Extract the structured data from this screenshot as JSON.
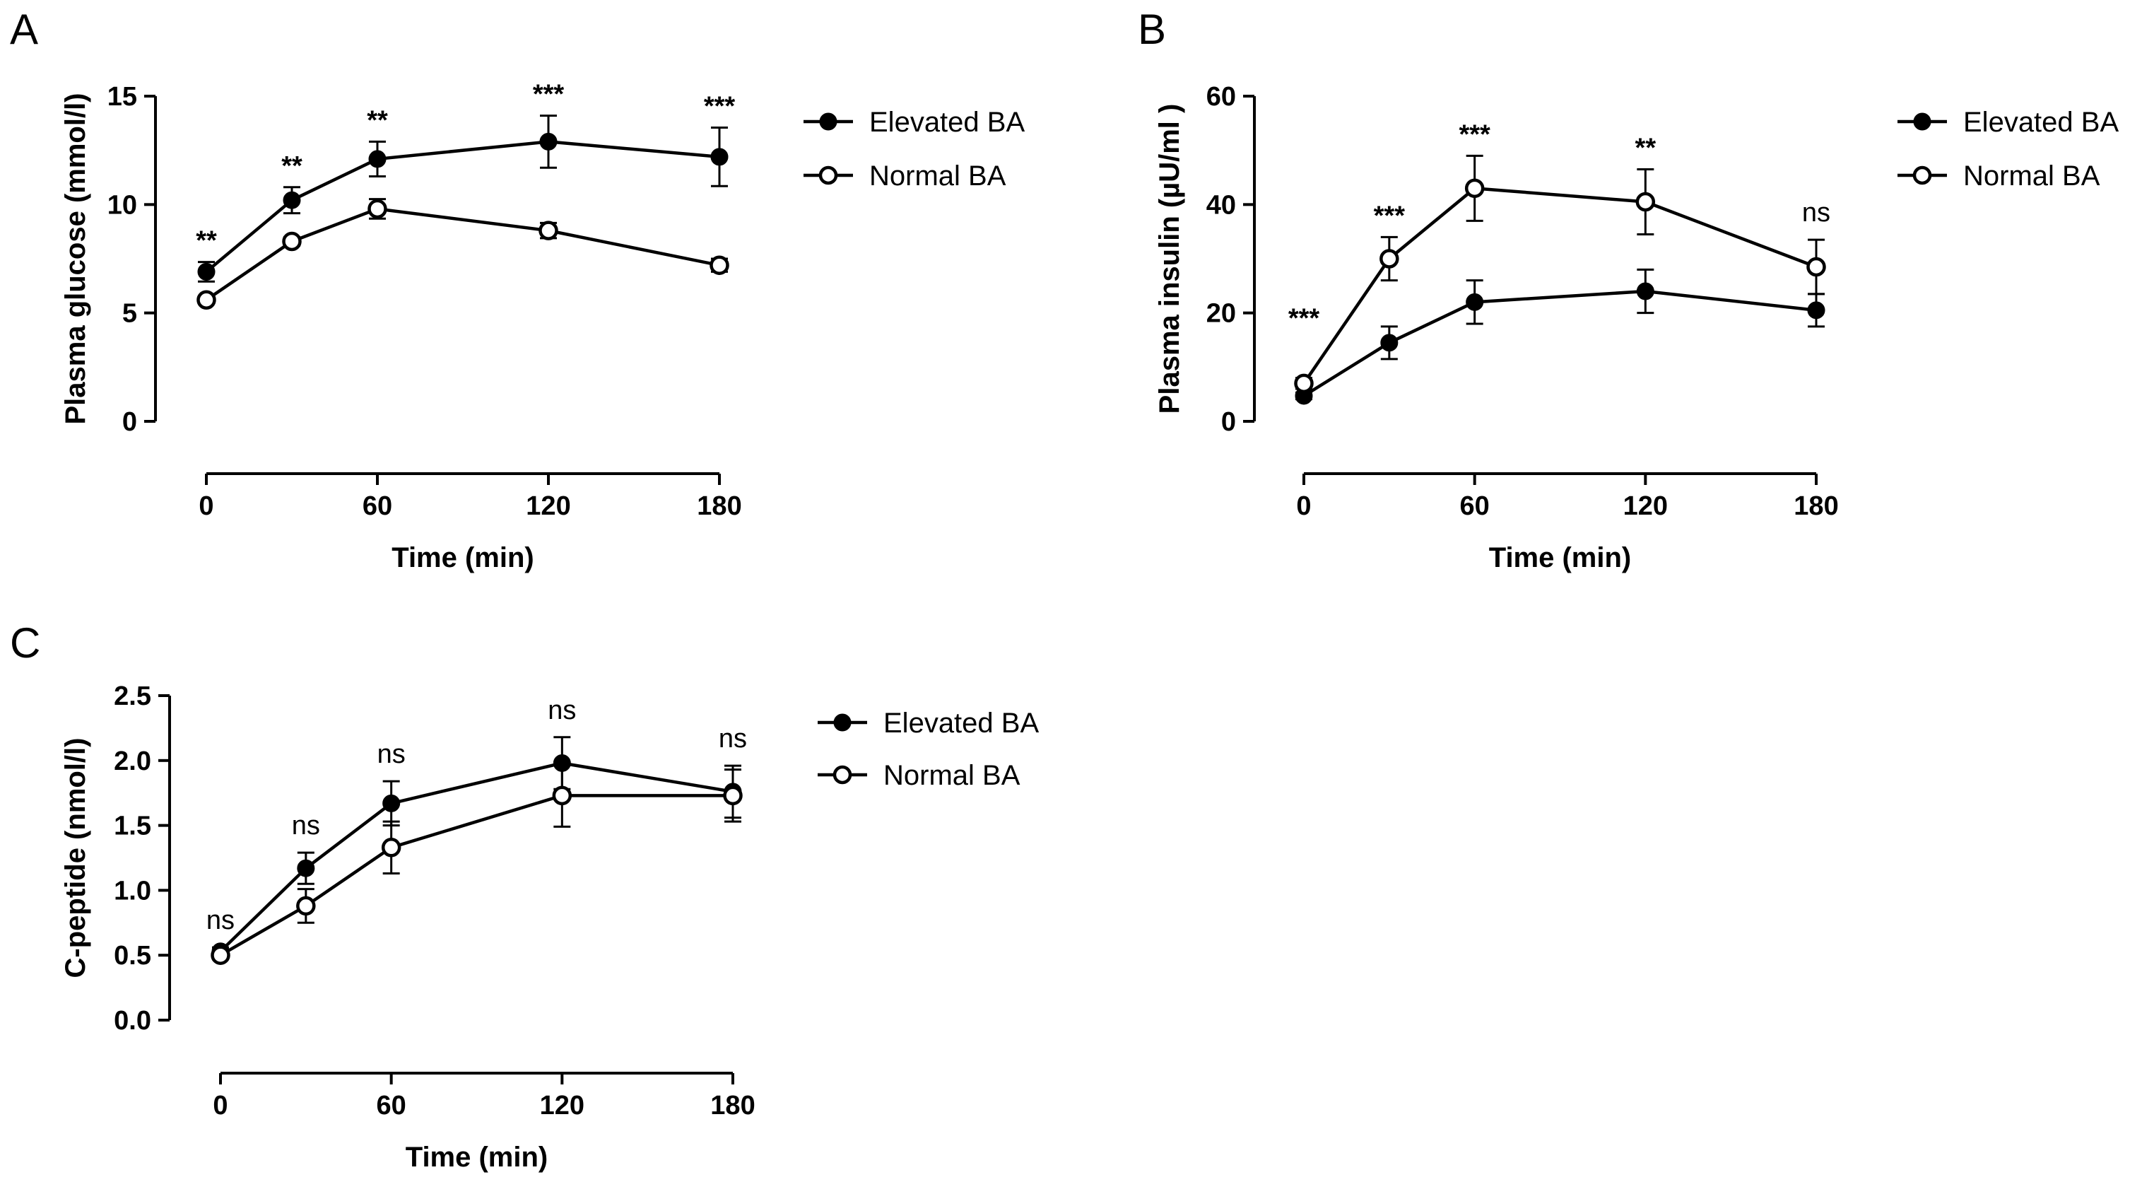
{
  "chart_data": [
    {
      "panel": "A",
      "type": "line",
      "xlabel": "Time (min)",
      "ylabel": "Plasma glucose (mmol/l)",
      "xlim": [
        0,
        180
      ],
      "ylim": [
        0,
        15
      ],
      "xticks": [
        "0",
        "60",
        "120",
        "180"
      ],
      "yticks": [
        "0",
        "5",
        "10",
        "15"
      ],
      "x": [
        0,
        30,
        60,
        120,
        180
      ],
      "series": [
        {
          "name": "Elevated BA",
          "marker": "filled",
          "values": [
            6.9,
            10.2,
            12.1,
            12.9,
            12.2
          ],
          "errors": [
            0.45,
            0.6,
            0.8,
            1.2,
            1.35
          ]
        },
        {
          "name": "Normal BA",
          "marker": "open",
          "values": [
            5.6,
            8.3,
            9.8,
            8.8,
            7.2
          ],
          "errors": [
            0.15,
            0.2,
            0.45,
            0.35,
            0.3
          ]
        }
      ],
      "annotations": [
        {
          "x": 0,
          "label": "**"
        },
        {
          "x": 30,
          "label": "**"
        },
        {
          "x": 60,
          "label": "**"
        },
        {
          "x": 120,
          "label": "***"
        },
        {
          "x": 180,
          "label": "***"
        }
      ],
      "legend": "top-right"
    },
    {
      "panel": "B",
      "type": "line",
      "xlabel": "Time (min)",
      "ylabel": "Plasma insulin (µU/ml )",
      "xlim": [
        0,
        180
      ],
      "ylim": [
        0,
        60
      ],
      "xticks": [
        "0",
        "60",
        "120",
        "180"
      ],
      "yticks": [
        "0",
        "20",
        "40",
        "60"
      ],
      "x": [
        0,
        30,
        60,
        120,
        180
      ],
      "series": [
        {
          "name": "Elevated BA",
          "marker": "filled",
          "values": [
            4.7,
            14.5,
            22.0,
            24.0,
            20.5
          ],
          "errors": [
            0.6,
            3.0,
            4.0,
            4.0,
            3.0
          ]
        },
        {
          "name": "Normal BA",
          "marker": "open",
          "values": [
            7.0,
            30.0,
            43.0,
            40.5,
            28.5
          ],
          "errors": [
            1.0,
            4.0,
            6.0,
            6.0,
            5.0
          ]
        }
      ],
      "annotations": [
        {
          "x": 0,
          "label": "***"
        },
        {
          "x": 30,
          "label": "***"
        },
        {
          "x": 60,
          "label": "***"
        },
        {
          "x": 120,
          "label": "**"
        },
        {
          "x": 180,
          "label": "ns"
        }
      ],
      "legend": "top-right"
    },
    {
      "panel": "C",
      "type": "line",
      "xlabel": "Time (min)",
      "ylabel": "C-peptide (nmol/l)",
      "xlim": [
        0,
        180
      ],
      "ylim": [
        0,
        2.5
      ],
      "xticks": [
        "0",
        "60",
        "120",
        "180"
      ],
      "yticks": [
        "0.0",
        "0.5",
        "1.0",
        "1.5",
        "2.0",
        "2.5"
      ],
      "x": [
        0,
        30,
        60,
        120,
        180
      ],
      "series": [
        {
          "name": "Elevated BA",
          "marker": "filled",
          "values": [
            0.53,
            1.17,
            1.67,
            1.98,
            1.76
          ],
          "errors": [
            0.03,
            0.12,
            0.17,
            0.2,
            0.2
          ]
        },
        {
          "name": "Normal BA",
          "marker": "open",
          "values": [
            0.5,
            0.88,
            1.33,
            1.73,
            1.73
          ],
          "errors": [
            0.03,
            0.13,
            0.2,
            0.24,
            0.2
          ]
        }
      ],
      "annotations": [
        {
          "x": 0,
          "label": "ns"
        },
        {
          "x": 30,
          "label": "ns"
        },
        {
          "x": 60,
          "label": "ns"
        },
        {
          "x": 120,
          "label": "ns"
        },
        {
          "x": 180,
          "label": "ns"
        }
      ],
      "legend": "top-right"
    }
  ]
}
